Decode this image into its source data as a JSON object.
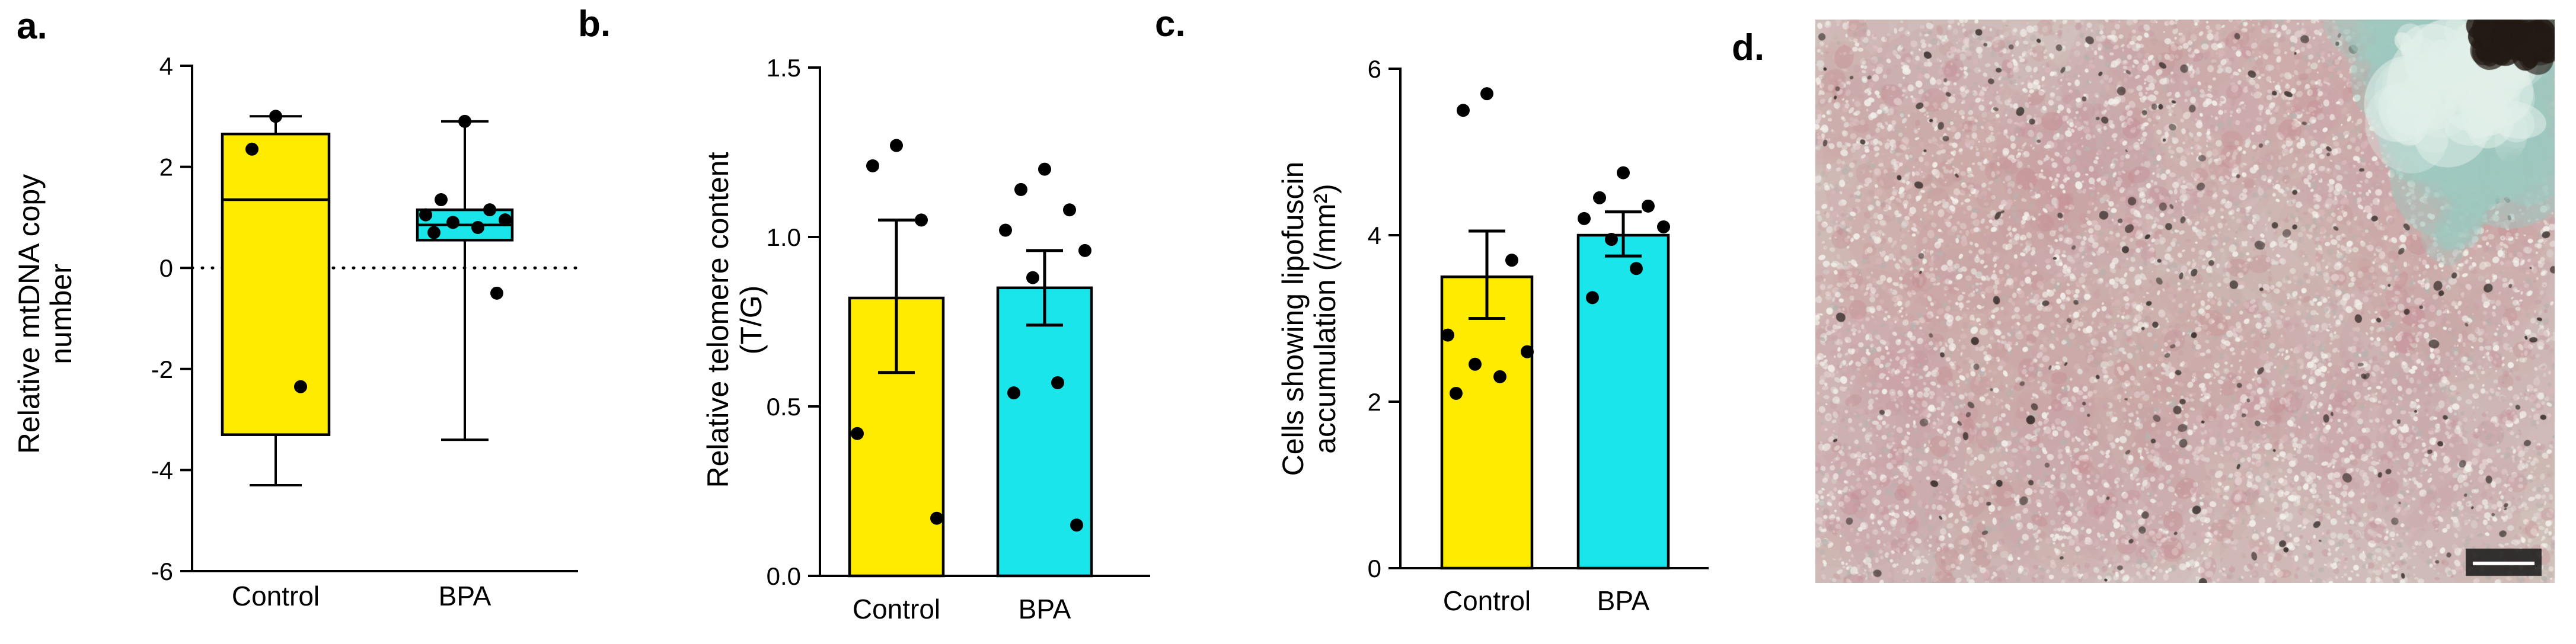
{
  "figure": {
    "panels": [
      {
        "label": "a."
      },
      {
        "label": "b."
      },
      {
        "label": "c."
      },
      {
        "label": "d."
      }
    ]
  },
  "colors": {
    "control": "#FFEB00",
    "bpa": "#19E5EA",
    "points": "#000000",
    "axis": "#000000"
  },
  "chart_data": [
    {
      "panel": "a",
      "type": "box",
      "title": "",
      "xlabel": "",
      "ylabel_lines": [
        "Relative mtDNA copy",
        "number"
      ],
      "categories": [
        "Control",
        "BPA"
      ],
      "ylim": [
        -6,
        4
      ],
      "yticks": [
        {
          "v": 4,
          "label": "4"
        },
        {
          "v": 2,
          "label": "2"
        },
        {
          "v": 0,
          "label": "0"
        },
        {
          "v": -2,
          "label": "-2"
        },
        {
          "v": -4,
          "label": "-4"
        },
        {
          "v": -6,
          "label": "-6"
        }
      ],
      "reference_line": {
        "v": 0,
        "style": "dotted"
      },
      "series": [
        {
          "name": "Control",
          "fill": "control",
          "whisker_low": -4.3,
          "q1": -3.3,
          "median": 1.35,
          "q3": 2.65,
          "whisker_high": 3.0,
          "points": [
            3.0,
            2.35,
            -2.35
          ]
        },
        {
          "name": "BPA",
          "fill": "bpa",
          "whisker_low": -3.4,
          "q1": 0.55,
          "median": 0.85,
          "q3": 1.15,
          "whisker_high": 2.9,
          "points": [
            2.9,
            1.35,
            1.15,
            1.05,
            0.95,
            0.9,
            0.8,
            0.7,
            -0.5
          ]
        }
      ]
    },
    {
      "panel": "b",
      "type": "bar",
      "title": "",
      "xlabel": "",
      "ylabel_lines": [
        "Relative telomere content",
        "(T/G)"
      ],
      "categories": [
        "Control",
        "BPA"
      ],
      "ylim": [
        0,
        1.5
      ],
      "yticks": [
        {
          "v": 1.5,
          "label": "1.5"
        },
        {
          "v": 1.0,
          "label": "1.0"
        },
        {
          "v": 0.5,
          "label": "0.5"
        },
        {
          "v": 0.0,
          "label": "0.0"
        }
      ],
      "series": [
        {
          "name": "Control",
          "fill": "control",
          "mean": 0.82,
          "err_low": 0.6,
          "err_high": 1.05,
          "points": [
            1.27,
            1.21,
            1.05,
            0.42,
            0.17
          ]
        },
        {
          "name": "BPA",
          "fill": "bpa",
          "mean": 0.85,
          "err_low": 0.74,
          "err_high": 0.96,
          "points": [
            1.2,
            1.14,
            1.08,
            1.02,
            0.96,
            0.88,
            0.57,
            0.54,
            0.15
          ]
        }
      ]
    },
    {
      "panel": "c",
      "type": "bar",
      "title": "",
      "xlabel": "",
      "ylabel_lines": [
        "Cells showing lipofuscin",
        "accumulation (/mm²)"
      ],
      "categories": [
        "Control",
        "BPA"
      ],
      "ylim": [
        0,
        6
      ],
      "yticks": [
        {
          "v": 6,
          "label": "6"
        },
        {
          "v": 4,
          "label": "4"
        },
        {
          "v": 2,
          "label": "2"
        },
        {
          "v": 0,
          "label": "0"
        }
      ],
      "series": [
        {
          "name": "Control",
          "fill": "control",
          "mean": 3.5,
          "err_low": 3.0,
          "err_high": 4.05,
          "points": [
            5.7,
            5.5,
            3.7,
            2.8,
            2.6,
            2.45,
            2.3,
            2.1
          ]
        },
        {
          "name": "BPA",
          "fill": "bpa",
          "mean": 4.0,
          "err_low": 3.75,
          "err_high": 4.28,
          "points": [
            4.75,
            4.45,
            4.35,
            4.2,
            4.1,
            3.95,
            3.6,
            3.25
          ]
        }
      ]
    }
  ],
  "micrograph": {
    "kind": "light-micrograph-tissue-section",
    "base_color": "#d3c9c2",
    "speckle_colors": [
      "#efece7",
      "#e2ded8",
      "#d9b7ba",
      "#c9a3a8",
      "#b9b2ae",
      "#e6d2d2"
    ],
    "granule_color": "#3a312e",
    "pink_wash": "#c98f97",
    "teal_patch": "#9fc9c0",
    "corner_patch": "#231a14",
    "scalebar_bg": "#1d1d1d",
    "scalebar_line": "#ffffff"
  }
}
